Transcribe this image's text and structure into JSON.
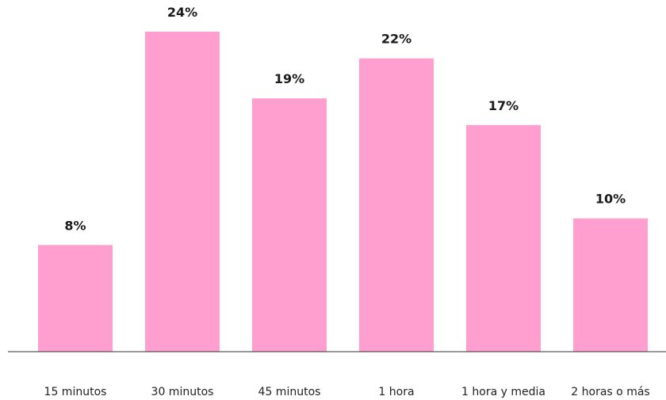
{
  "chart_data": {
    "type": "bar",
    "categories": [
      "15 minutos",
      "30 minutos",
      "45 minutos",
      "1 hora",
      "1 hora y media",
      "2 horas o más"
    ],
    "values": [
      8,
      24,
      19,
      22,
      17,
      10
    ],
    "value_labels": [
      "8%",
      "24%",
      "19%",
      "22%",
      "17%",
      "10%"
    ],
    "unit": "%",
    "title": "",
    "xlabel": "",
    "ylabel": "",
    "ylim": [
      0,
      24
    ],
    "grid": false,
    "bar_color": "#ff9fd0",
    "axis_color": "#333333"
  }
}
